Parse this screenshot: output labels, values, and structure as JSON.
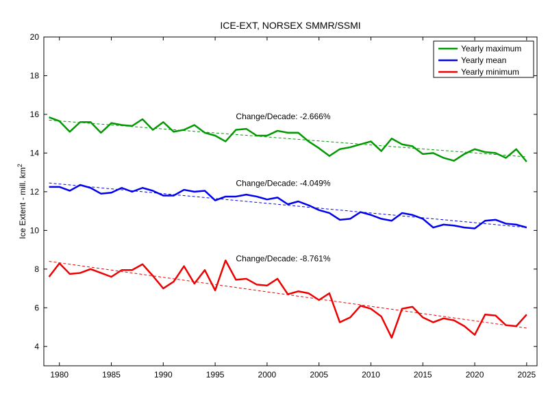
{
  "chart_data": {
    "type": "line",
    "title": "ICE-EXT, NORSEX SMMR/SSMI",
    "xlabel": "",
    "ylabel": "Ice Extent - mill. km",
    "ylabel_superscript": "2",
    "xlim": [
      1978.5,
      2026
    ],
    "ylim": [
      3,
      20
    ],
    "x_ticks": [
      1980,
      1985,
      1990,
      1995,
      2000,
      2005,
      2010,
      2015,
      2020,
      2025
    ],
    "y_ticks": [
      4,
      6,
      8,
      10,
      12,
      14,
      16,
      18,
      20
    ],
    "grid": false,
    "legend_position": "top-right",
    "x": [
      1979,
      1980,
      1981,
      1982,
      1983,
      1984,
      1985,
      1986,
      1987,
      1988,
      1989,
      1990,
      1991,
      1992,
      1993,
      1994,
      1995,
      1996,
      1997,
      1998,
      1999,
      2000,
      2001,
      2002,
      2003,
      2004,
      2005,
      2006,
      2007,
      2008,
      2009,
      2010,
      2011,
      2012,
      2013,
      2014,
      2015,
      2016,
      2017,
      2018,
      2019,
      2020,
      2021,
      2022,
      2023,
      2024,
      2025
    ],
    "series": [
      {
        "name": "Yearly maximum",
        "color": "#009900",
        "values": [
          15.85,
          15.65,
          15.1,
          15.6,
          15.6,
          15.05,
          15.55,
          15.45,
          15.4,
          15.75,
          15.2,
          15.6,
          15.1,
          15.2,
          15.45,
          15.05,
          14.9,
          14.6,
          15.2,
          15.25,
          14.9,
          14.9,
          15.15,
          15.05,
          15.05,
          14.6,
          14.25,
          13.85,
          14.2,
          14.3,
          14.45,
          14.6,
          14.1,
          14.75,
          14.45,
          14.35,
          13.95,
          14.0,
          13.75,
          13.6,
          13.95,
          14.2,
          14.05,
          14.0,
          13.75,
          14.2,
          13.55
        ],
        "trend": [
          15.7,
          13.8
        ],
        "change_label": "Change/Decade: -2.666%"
      },
      {
        "name": "Yearly mean",
        "color": "#0000ee",
        "values": [
          12.25,
          12.25,
          12.05,
          12.35,
          12.2,
          11.9,
          11.95,
          12.2,
          12.0,
          12.2,
          12.05,
          11.8,
          11.8,
          12.1,
          12.0,
          12.05,
          11.55,
          11.75,
          11.75,
          11.85,
          11.75,
          11.6,
          11.7,
          11.35,
          11.5,
          11.3,
          11.05,
          10.9,
          10.55,
          10.6,
          10.95,
          10.8,
          10.6,
          10.5,
          10.9,
          10.8,
          10.6,
          10.15,
          10.3,
          10.25,
          10.15,
          10.1,
          10.5,
          10.55,
          10.35,
          10.3,
          10.15
        ],
        "trend": [
          12.45,
          10.15
        ],
        "change_label": "Change/Decade: -4.049%"
      },
      {
        "name": "Yearly minimum",
        "color": "#ee0000",
        "values": [
          7.6,
          8.3,
          7.75,
          7.8,
          8.0,
          7.8,
          7.6,
          7.95,
          7.95,
          8.25,
          7.65,
          7.0,
          7.35,
          8.15,
          7.25,
          7.95,
          6.9,
          8.45,
          7.45,
          7.5,
          7.2,
          7.15,
          7.5,
          6.7,
          6.85,
          6.75,
          6.4,
          6.75,
          5.25,
          5.5,
          6.1,
          5.95,
          5.55,
          4.45,
          5.95,
          6.05,
          5.5,
          5.25,
          5.45,
          5.35,
          5.05,
          4.6,
          5.65,
          5.6,
          5.1,
          5.05,
          5.65
        ],
        "trend": [
          8.4,
          4.95
        ],
        "change_label": "Change/Decade: -8.761%"
      }
    ],
    "annotations": [
      {
        "text": "Change/Decade: -2.666%",
        "x": 1997,
        "y": 15.75
      },
      {
        "text": "Change/Decade: -4.049%",
        "x": 1997,
        "y": 12.3
      },
      {
        "text": "Change/Decade: -8.761%",
        "x": 1997,
        "y": 8.4
      }
    ]
  }
}
